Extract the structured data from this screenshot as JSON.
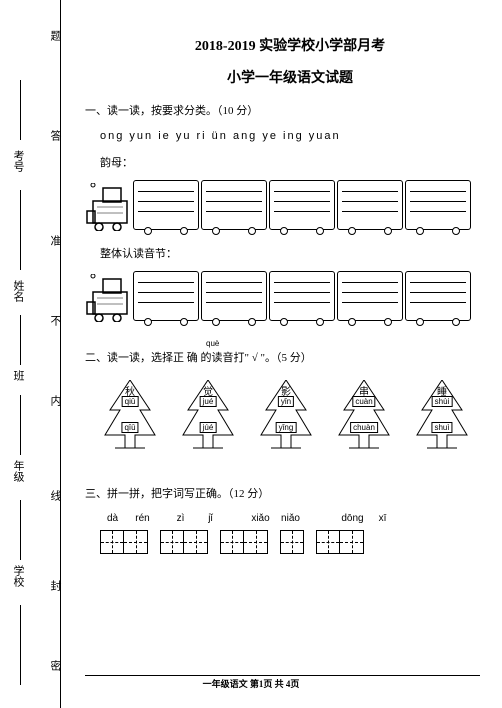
{
  "sidebar": {
    "vline_labels": [
      "题",
      "答",
      "准",
      "不",
      "内",
      "线",
      "封",
      "密"
    ],
    "field_labels": [
      "考号",
      "姓名",
      "班",
      "年级",
      "学校"
    ]
  },
  "header": {
    "line1": "2018-2019 实验学校小学部月考",
    "line2": "小学一年级语文试题"
  },
  "q1": {
    "title": "一、读一读，按要求分类。（10 分）",
    "pinyins": "ong  yun  ie  yu  ri  ün  ang  ye  ing  yuan",
    "label1": "韵母：",
    "label2": "整体认读音节：",
    "train": {
      "car_count": 5,
      "line_color": "#000000",
      "car_bg": "#ffffff"
    }
  },
  "q2": {
    "title": "二、读一读，选择正 确 的读音打\" √ \"。（5 分）",
    "anno_pinyin": "què",
    "trees": [
      {
        "char": "秋",
        "p1": "qiū",
        "p2": "qīū"
      },
      {
        "char": "觉",
        "p1": "jué",
        "p2": "júé"
      },
      {
        "char": "影",
        "p1": "yǐn",
        "p2": "yǐng"
      },
      {
        "char": "串",
        "p1": "cuàn",
        "p2": "chuàn"
      },
      {
        "char": "睡",
        "p1": "shùi",
        "p2": "shuì"
      }
    ],
    "tree_style": {
      "fill": "none",
      "stroke": "#000000",
      "stroke_width": 1
    }
  },
  "q3": {
    "title": "三、拼一拼，把字词写正确。（12 分）",
    "labels": [
      "dà",
      "rén",
      "zì",
      "jǐ",
      "xiǎo",
      "niǎo",
      "dōng",
      "xī"
    ],
    "grid_groups": [
      2,
      2,
      2,
      1,
      2
    ],
    "grid_style": {
      "size": 24,
      "border_color": "#000000",
      "dash_color": "#000000"
    }
  },
  "footer": {
    "text": "一年级语文  第1页  共 4页"
  },
  "colors": {
    "page_bg": "#ffffff",
    "text": "#000000"
  }
}
